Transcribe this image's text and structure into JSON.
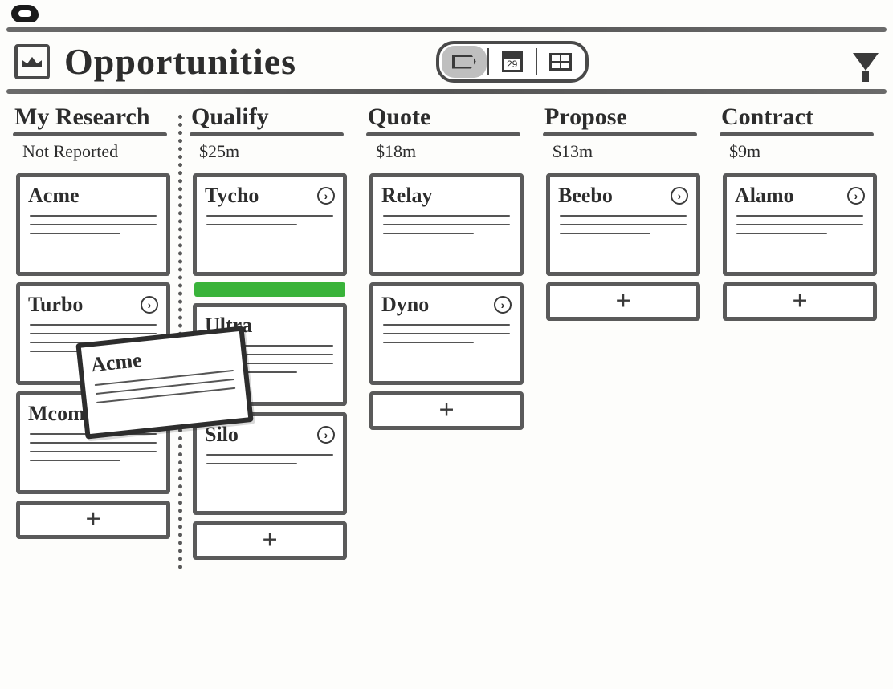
{
  "page": {
    "title": "Opportunities"
  },
  "viewSwitch": {
    "calendarDay": "29",
    "active": "kanban"
  },
  "dragging": {
    "title": "Acme"
  },
  "dropZone": {
    "color": "#39b339"
  },
  "columns": [
    {
      "title": "My Research",
      "subtitle": "Not Reported",
      "dottedDividerAfter": true,
      "cards": [
        {
          "title": "Acme",
          "hasBadge": false,
          "lines": 3
        },
        {
          "title": "Turbo",
          "hasBadge": true,
          "lines": 4
        },
        {
          "title": "Mcomm",
          "hasBadge": false,
          "lines": 4
        }
      ]
    },
    {
      "title": "Qualify",
      "subtitle": "$25m",
      "showDropZoneAfterFirst": true,
      "cards": [
        {
          "title": "Tycho",
          "hasBadge": true,
          "lines": 2
        },
        {
          "title": "Ultra",
          "hasBadge": false,
          "lines": 4
        },
        {
          "title": "Silo",
          "hasBadge": true,
          "lines": 2
        }
      ]
    },
    {
      "title": "Quote",
      "subtitle": "$18m",
      "cards": [
        {
          "title": "Relay",
          "hasBadge": false,
          "lines": 3
        },
        {
          "title": "Dyno",
          "hasBadge": true,
          "lines": 3
        }
      ]
    },
    {
      "title": "Propose",
      "subtitle": "$13m",
      "cards": [
        {
          "title": "Beebo",
          "hasBadge": true,
          "lines": 3
        }
      ]
    },
    {
      "title": "Contract",
      "subtitle": "$9m",
      "cards": [
        {
          "title": "Alamo",
          "hasBadge": true,
          "lines": 3
        }
      ]
    }
  ],
  "style": {
    "border": "#5a5a5a",
    "text": "#2d2d2d",
    "background": "#fdfdfb",
    "dropZone": "#39b339",
    "activeView": "#bfbfbf",
    "cardLineCountDefault": 3
  }
}
